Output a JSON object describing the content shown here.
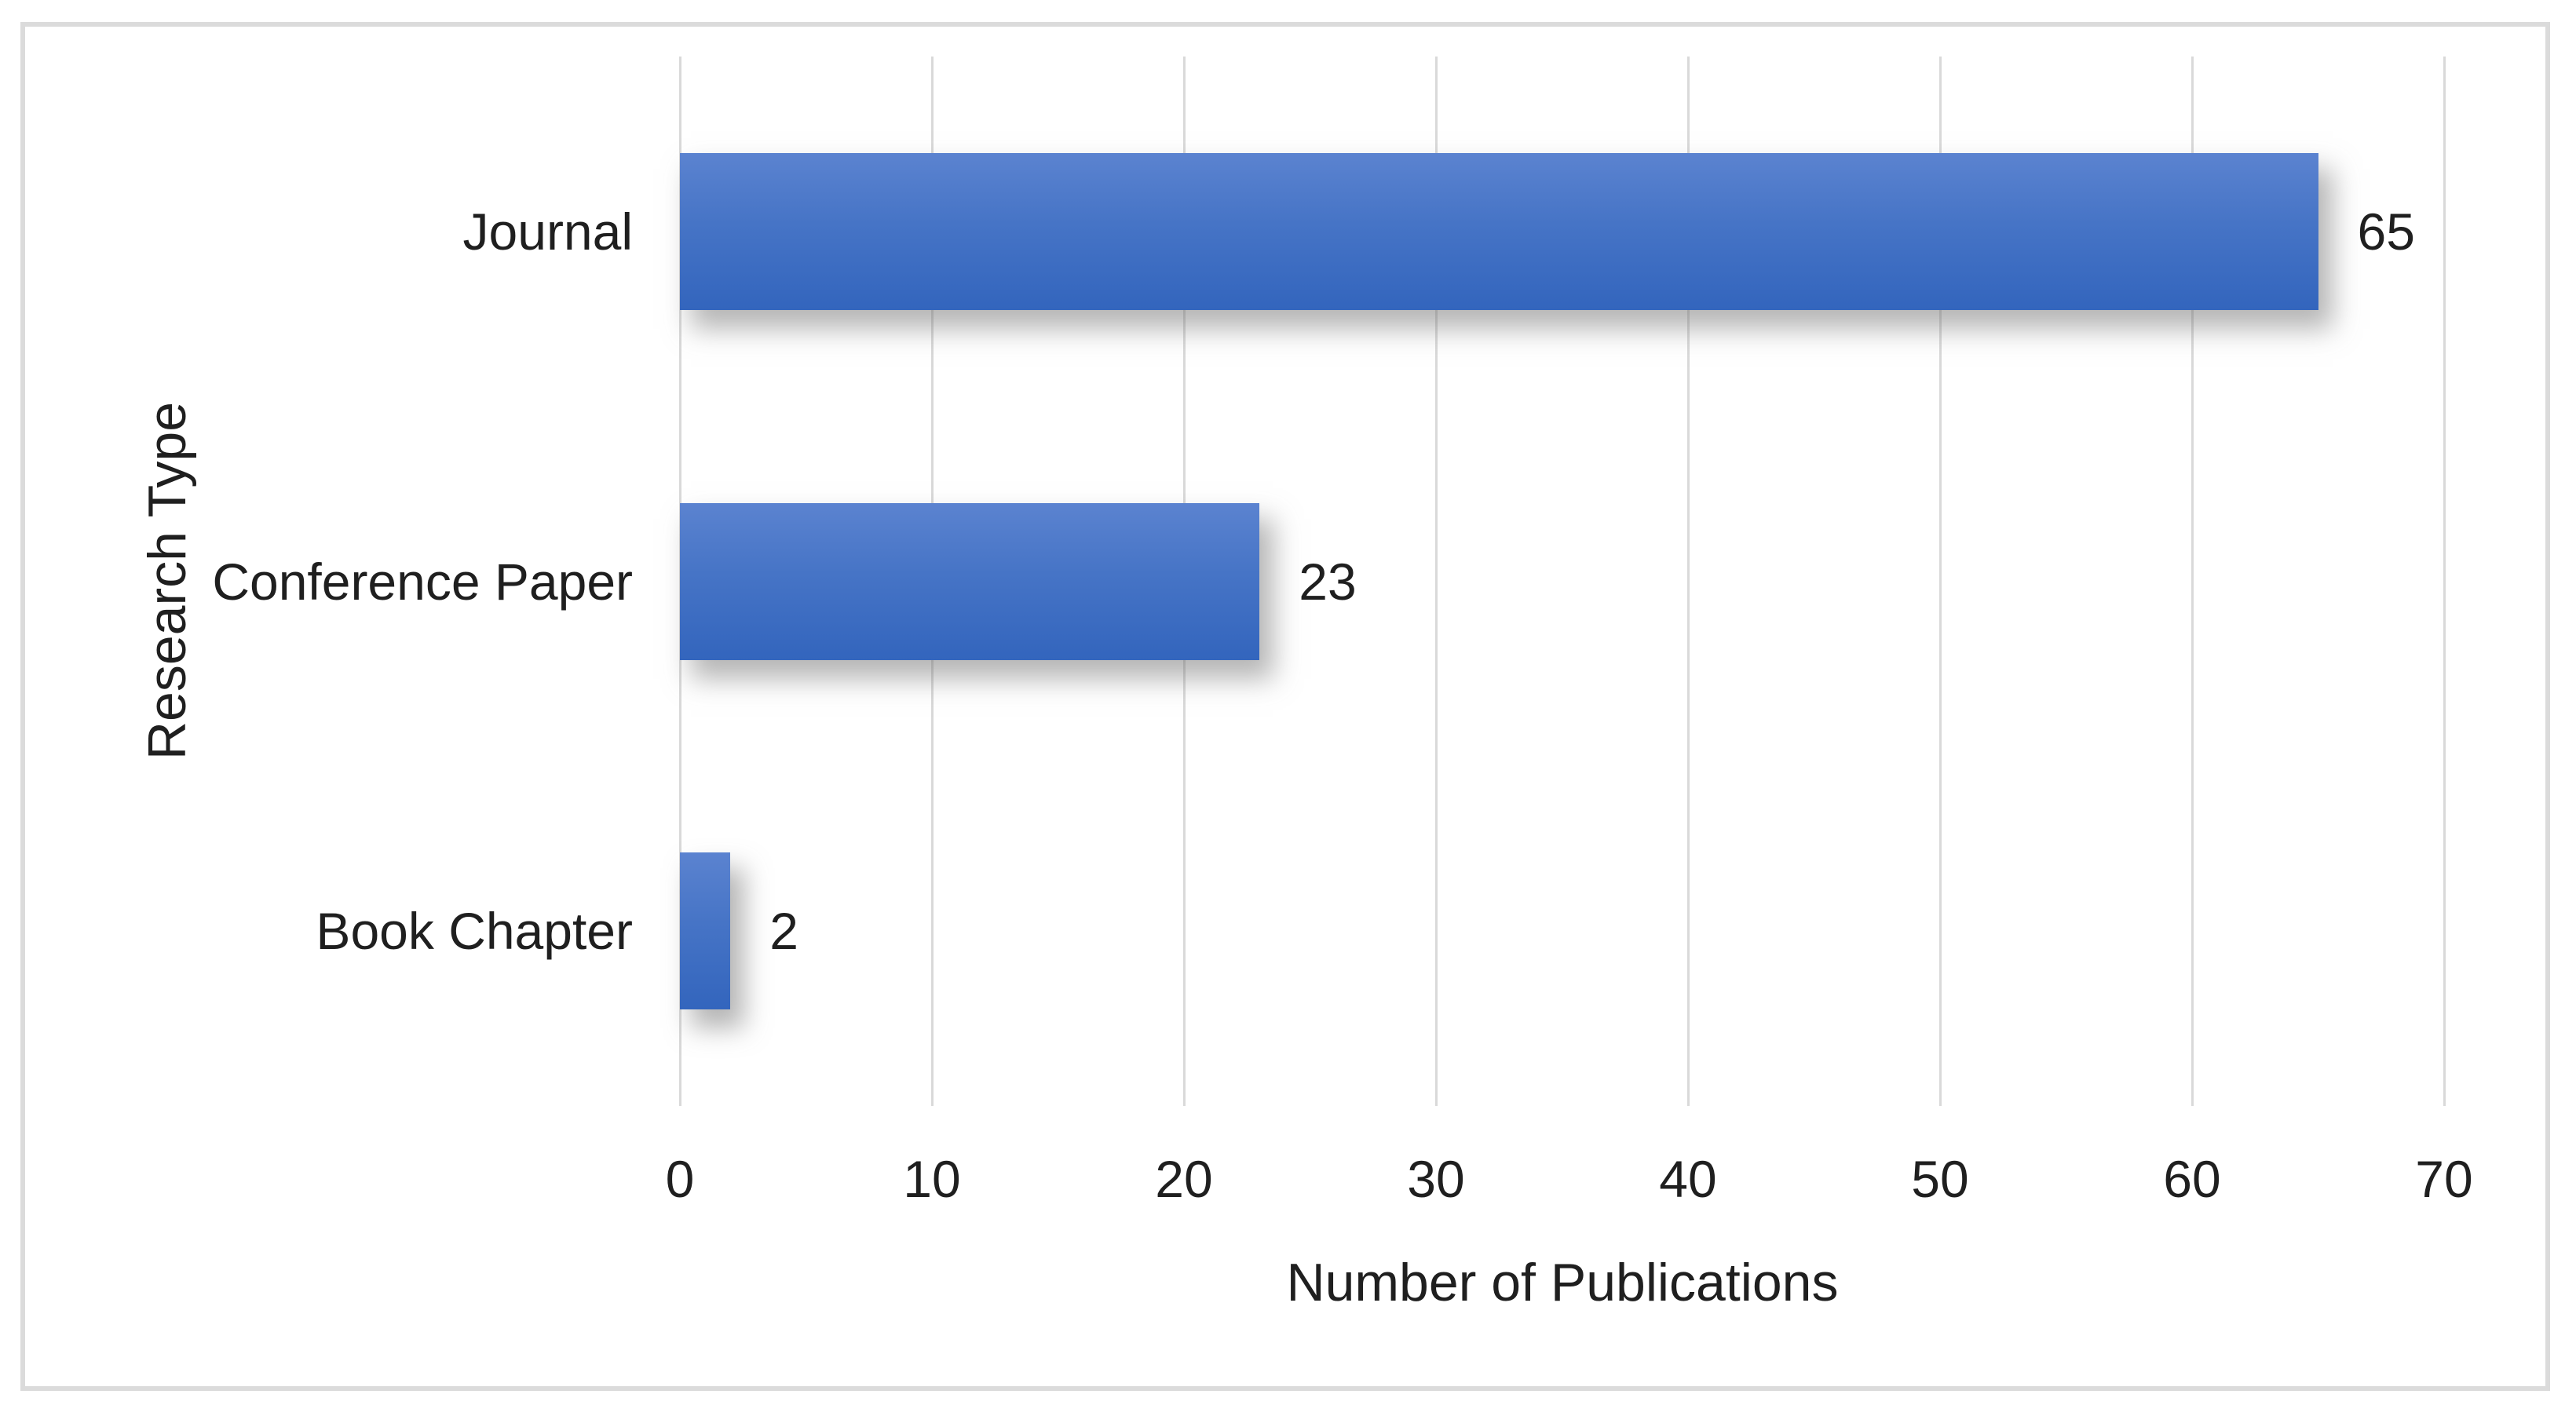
{
  "chart_data": {
    "type": "bar",
    "orientation": "horizontal",
    "title": "",
    "categories": [
      "Journal",
      "Conference Paper",
      "Book Chapter"
    ],
    "values": [
      65,
      23,
      2
    ],
    "data_labels": [
      "65",
      "23",
      "2"
    ],
    "xlabel": "Number of Publications",
    "ylabel": "Research Type",
    "xlim": [
      0,
      70
    ],
    "x_ticks": [
      0,
      10,
      20,
      30,
      40,
      50,
      60,
      70
    ],
    "grid": "vertical-major",
    "legend": "none",
    "colors": {
      "bar_gradient_top": "#5B83D0",
      "bar_gradient_bottom": "#3365BD",
      "gridline": "#D9D9D9",
      "frame_border": "#DBDBDB",
      "text": "#1F1F1F",
      "background": "#FFFFFF"
    }
  }
}
